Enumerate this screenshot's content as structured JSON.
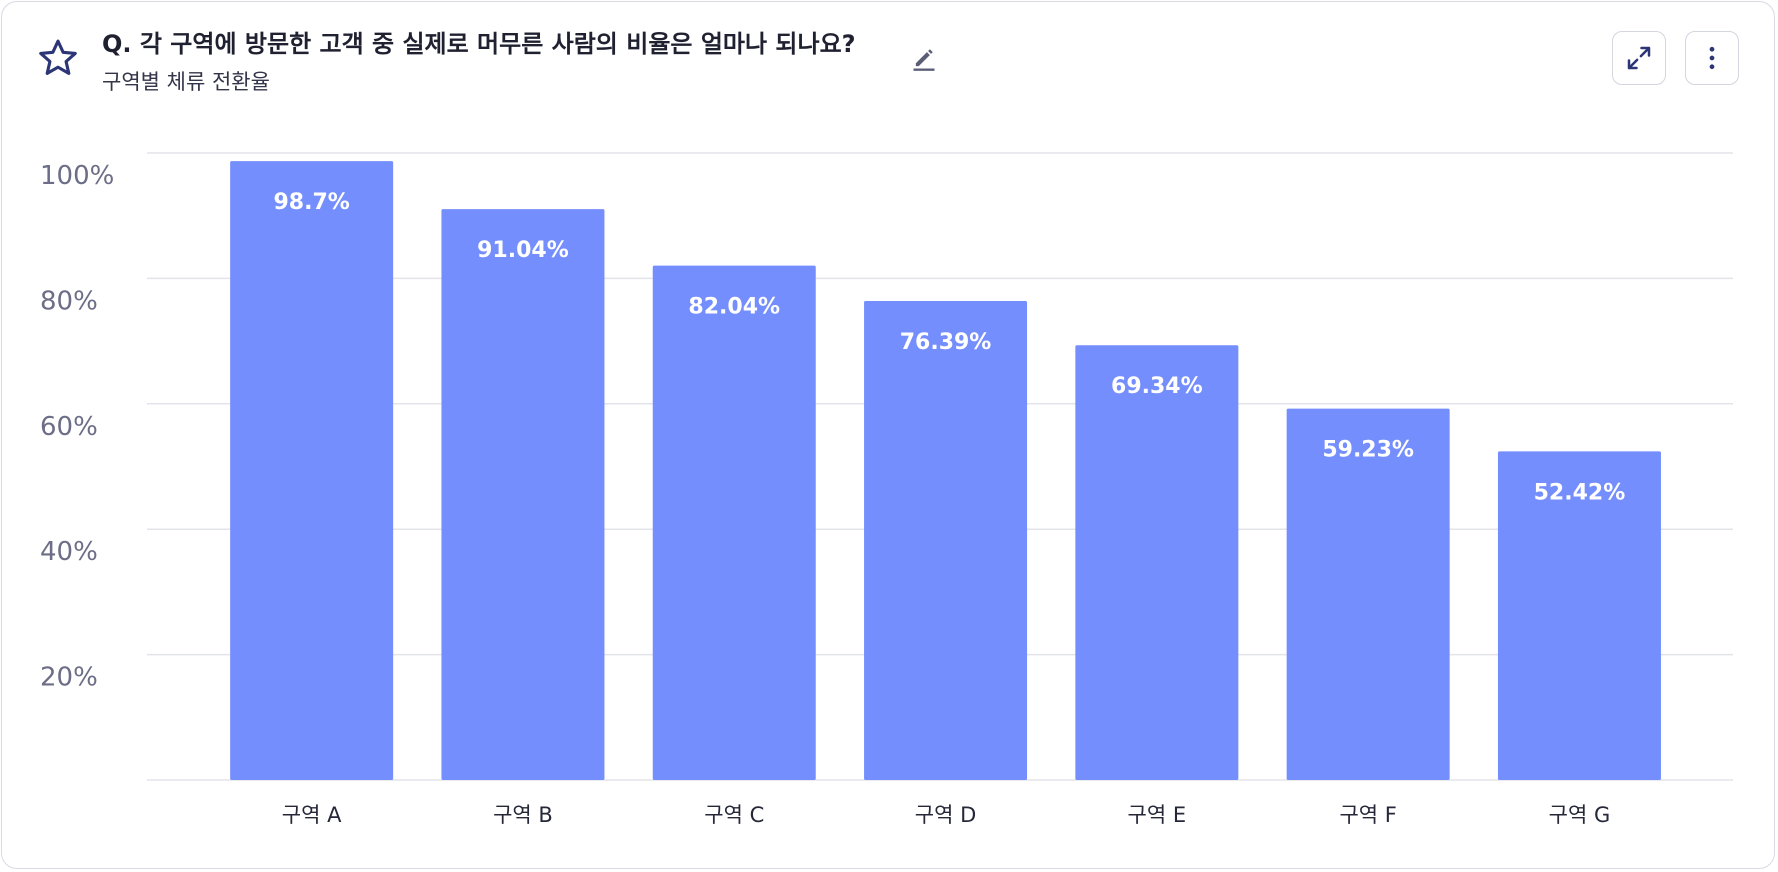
{
  "header": {
    "title": "Q. 각 구역에 방문한 고객 중 실제로 머무른 사람의 비율은 얼마나 되나요?",
    "subtitle": "구역별 체류 전환율",
    "icons": [
      "star-icon",
      "edit-icon",
      "expand-icon",
      "more-vertical-icon"
    ]
  },
  "colors": {
    "bar": "#758efd",
    "bar_label": "#ffffff",
    "grid": "#e3e4ea",
    "tick_label": "#6b6e86",
    "category_label": "#26283a"
  },
  "chart_data": {
    "type": "bar",
    "categories": [
      "구역 A",
      "구역 B",
      "구역 C",
      "구역 D",
      "구역 E",
      "구역 F",
      "구역 G"
    ],
    "values": [
      98.7,
      91.04,
      82.04,
      76.39,
      69.34,
      59.23,
      52.42
    ],
    "value_labels": [
      "98.7%",
      "91.04%",
      "82.04%",
      "76.39%",
      "69.34%",
      "59.23%",
      "52.42%"
    ],
    "yticks": [
      20,
      40,
      60,
      80,
      100
    ],
    "ytick_labels": [
      "20%",
      "40%",
      "60%",
      "80%",
      "100%"
    ],
    "ylim": [
      0,
      100
    ],
    "grid": true,
    "legend": "none"
  }
}
